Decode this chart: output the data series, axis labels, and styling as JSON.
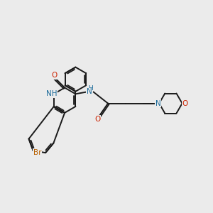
{
  "bg_color": "#ebebeb",
  "bond_color": "#1a1a1a",
  "bond_width": 1.4,
  "atom_colors": {
    "N": "#1a6b9a",
    "O": "#cc2200",
    "Br": "#b86000",
    "NH_amide": "#1a6b9a"
  },
  "figsize": [
    3.0,
    3.0
  ],
  "dpi": 100
}
